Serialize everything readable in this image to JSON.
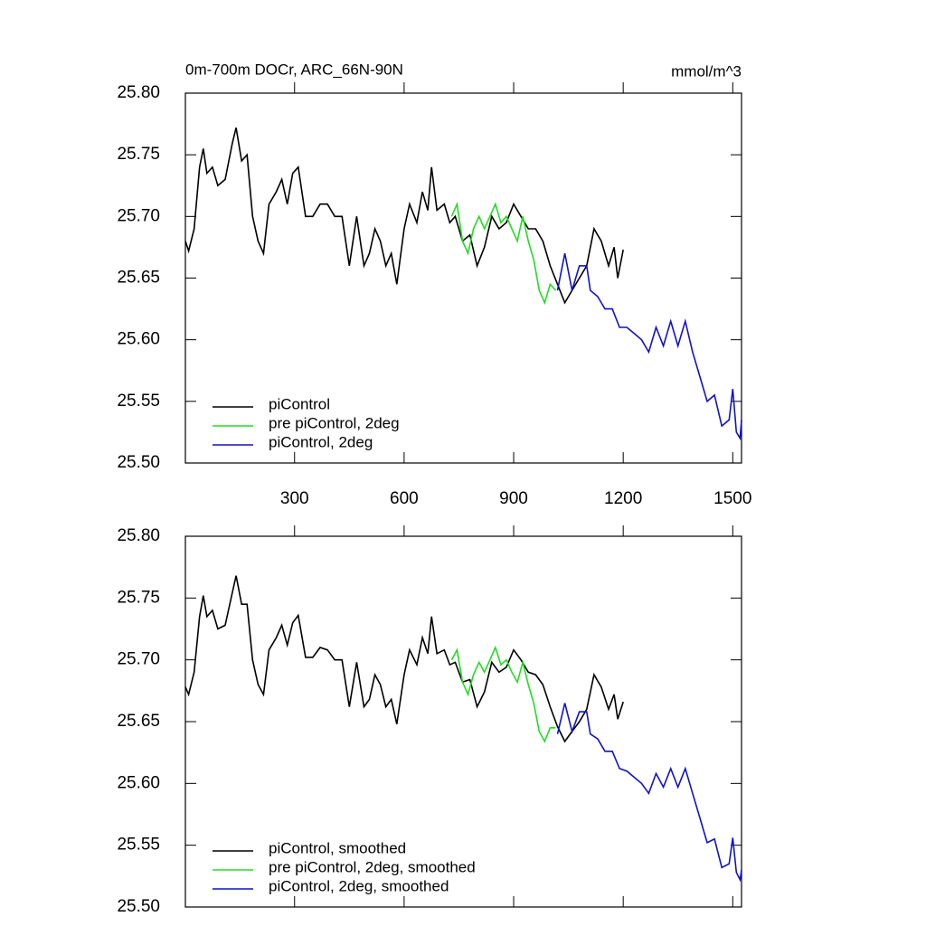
{
  "chart_data": [
    {
      "type": "line",
      "title": "0m-700m DOCr, ARC_66N-90N",
      "units": "mmol/m^3",
      "xlim": [
        1,
        1524
      ],
      "xticks": [
        300,
        600,
        900,
        1200,
        1500
      ],
      "xtick_labels": true,
      "ylim": [
        25.5,
        25.8
      ],
      "yticks": [
        {
          "value": 25.5,
          "label": "25.50"
        },
        {
          "value": 25.55,
          "label": "25.55"
        },
        {
          "value": 25.6,
          "label": "25.60"
        },
        {
          "value": 25.65,
          "label": "25.65"
        },
        {
          "value": 25.7,
          "label": "25.70"
        },
        {
          "value": 25.75,
          "label": "25.75"
        },
        {
          "value": 25.8,
          "label": "25.80"
        }
      ],
      "legend": "lower left",
      "series": [
        {
          "name": "piControl",
          "color": "#000000",
          "x": [
            1,
            10,
            25,
            40,
            50,
            60,
            75,
            90,
            110,
            130,
            140,
            155,
            170,
            185,
            200,
            215,
            230,
            250,
            265,
            280,
            295,
            310,
            330,
            350,
            370,
            390,
            410,
            430,
            450,
            470,
            490,
            505,
            520,
            535,
            550,
            565,
            580,
            600,
            615,
            635,
            650,
            665,
            675,
            690,
            710,
            725,
            740,
            760,
            780,
            800,
            820,
            840,
            860,
            880,
            900,
            920,
            940,
            960,
            980,
            1000,
            1020,
            1040,
            1060,
            1080,
            1100,
            1120,
            1140,
            1160,
            1175,
            1185,
            1200
          ],
          "values": [
            25.68,
            25.672,
            25.69,
            25.74,
            25.755,
            25.735,
            25.74,
            25.725,
            25.73,
            25.76,
            25.772,
            25.745,
            25.75,
            25.7,
            25.68,
            25.67,
            25.71,
            25.72,
            25.73,
            25.71,
            25.735,
            25.74,
            25.7,
            25.7,
            25.71,
            25.71,
            25.7,
            25.7,
            25.66,
            25.7,
            25.66,
            25.67,
            25.69,
            25.68,
            25.66,
            25.67,
            25.645,
            25.69,
            25.71,
            25.695,
            25.72,
            25.705,
            25.74,
            25.705,
            25.71,
            25.695,
            25.7,
            25.68,
            25.685,
            25.66,
            25.675,
            25.7,
            25.69,
            25.695,
            25.71,
            25.7,
            25.69,
            25.69,
            25.68,
            25.66,
            25.645,
            25.63,
            25.64,
            25.65,
            25.66,
            25.69,
            25.68,
            25.66,
            25.675,
            25.65,
            25.673
          ]
        },
        {
          "name": "pre piControl, 2deg",
          "color": "#22dd22",
          "x": [
            730,
            745,
            760,
            775,
            790,
            805,
            820,
            835,
            850,
            865,
            880,
            895,
            910,
            925,
            940,
            955,
            970,
            985,
            1000,
            1015
          ],
          "values": [
            25.7,
            25.71,
            25.68,
            25.67,
            25.69,
            25.7,
            25.69,
            25.7,
            25.71,
            25.695,
            25.7,
            25.69,
            25.68,
            25.7,
            25.68,
            25.665,
            25.64,
            25.63,
            25.645,
            25.64
          ]
        },
        {
          "name": "piControl, 2deg",
          "color": "#1111cc",
          "x": [
            1020,
            1040,
            1060,
            1080,
            1100,
            1110,
            1130,
            1150,
            1170,
            1190,
            1210,
            1230,
            1250,
            1270,
            1290,
            1310,
            1330,
            1350,
            1370,
            1390,
            1410,
            1430,
            1450,
            1470,
            1490,
            1500,
            1510,
            1520,
            1524
          ],
          "values": [
            25.64,
            25.67,
            25.64,
            25.66,
            25.66,
            25.64,
            25.635,
            25.625,
            25.625,
            25.61,
            25.61,
            25.605,
            25.6,
            25.59,
            25.61,
            25.595,
            25.615,
            25.595,
            25.615,
            25.59,
            25.57,
            25.55,
            25.555,
            25.53,
            25.535,
            25.56,
            25.525,
            25.52,
            25.535
          ]
        }
      ]
    },
    {
      "type": "line",
      "xlim": [
        1,
        1524
      ],
      "xticks": [
        300,
        600,
        900,
        1200,
        1500
      ],
      "xtick_labels": false,
      "ylim": [
        25.5,
        25.8
      ],
      "yticks": [
        {
          "value": 25.5,
          "label": "25.50"
        },
        {
          "value": 25.55,
          "label": "25.55"
        },
        {
          "value": 25.6,
          "label": "25.60"
        },
        {
          "value": 25.65,
          "label": "25.65"
        },
        {
          "value": 25.7,
          "label": "25.70"
        },
        {
          "value": 25.75,
          "label": "25.75"
        },
        {
          "value": 25.8,
          "label": "25.80"
        }
      ],
      "legend": "lower left",
      "series": [
        {
          "name": "piControl, smoothed",
          "color": "#000000",
          "x": [
            1,
            10,
            25,
            40,
            50,
            60,
            75,
            90,
            110,
            130,
            140,
            155,
            170,
            185,
            200,
            215,
            230,
            250,
            265,
            280,
            295,
            310,
            330,
            350,
            370,
            390,
            410,
            430,
            450,
            470,
            490,
            505,
            520,
            535,
            550,
            565,
            580,
            600,
            615,
            635,
            650,
            665,
            675,
            690,
            710,
            725,
            740,
            760,
            780,
            800,
            820,
            840,
            860,
            880,
            900,
            920,
            940,
            960,
            980,
            1000,
            1020,
            1040,
            1060,
            1080,
            1100,
            1120,
            1140,
            1160,
            1175,
            1185,
            1200
          ],
          "values": [
            25.678,
            25.672,
            25.69,
            25.735,
            25.752,
            25.735,
            25.74,
            25.725,
            25.728,
            25.755,
            25.768,
            25.745,
            25.745,
            25.7,
            25.68,
            25.672,
            25.708,
            25.718,
            25.728,
            25.712,
            25.73,
            25.736,
            25.702,
            25.702,
            25.71,
            25.708,
            25.7,
            25.7,
            25.662,
            25.698,
            25.662,
            25.668,
            25.688,
            25.68,
            25.662,
            25.668,
            25.648,
            25.688,
            25.708,
            25.696,
            25.718,
            25.705,
            25.735,
            25.705,
            25.708,
            25.696,
            25.698,
            25.682,
            25.684,
            25.662,
            25.674,
            25.698,
            25.69,
            25.694,
            25.708,
            25.7,
            25.69,
            25.688,
            25.68,
            25.662,
            25.646,
            25.634,
            25.642,
            25.65,
            25.66,
            25.688,
            25.678,
            25.66,
            25.672,
            25.652,
            25.666
          ]
        },
        {
          "name": "pre piControl, 2deg, smoothed",
          "color": "#22dd22",
          "x": [
            730,
            745,
            760,
            775,
            790,
            805,
            820,
            835,
            850,
            865,
            880,
            895,
            910,
            925,
            940,
            955,
            970,
            985,
            1000,
            1015
          ],
          "values": [
            25.7,
            25.708,
            25.682,
            25.672,
            25.688,
            25.698,
            25.69,
            25.7,
            25.71,
            25.696,
            25.7,
            25.69,
            25.682,
            25.698,
            25.68,
            25.665,
            25.642,
            25.634,
            25.645,
            25.645
          ]
        },
        {
          "name": "piControl, 2deg, smoothed",
          "color": "#1111cc",
          "x": [
            1020,
            1040,
            1060,
            1080,
            1100,
            1110,
            1130,
            1150,
            1170,
            1190,
            1210,
            1230,
            1250,
            1270,
            1290,
            1310,
            1330,
            1350,
            1370,
            1390,
            1410,
            1430,
            1450,
            1470,
            1490,
            1500,
            1510,
            1520,
            1524
          ],
          "values": [
            25.64,
            25.665,
            25.642,
            25.658,
            25.658,
            25.64,
            25.636,
            25.626,
            25.626,
            25.612,
            25.61,
            25.605,
            25.6,
            25.592,
            25.608,
            25.597,
            25.612,
            25.597,
            25.612,
            25.592,
            25.572,
            25.552,
            25.555,
            25.532,
            25.535,
            25.556,
            25.528,
            25.522,
            25.53
          ]
        }
      ]
    }
  ]
}
